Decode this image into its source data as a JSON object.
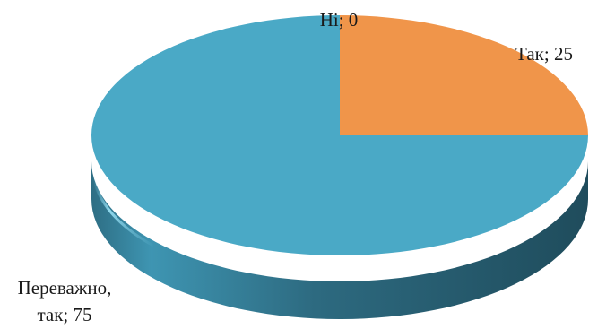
{
  "chart_data": {
    "type": "pie",
    "style": "3d",
    "title": "",
    "slices": [
      {
        "name": "Так",
        "value": 25,
        "label": "Так; 25",
        "color": "#F0954A",
        "color_dark": "#A9602B"
      },
      {
        "name": "Ні",
        "value": 0,
        "label": "Ні; 0",
        "color": "#8E8E8E",
        "color_dark": "#5E5E5E"
      },
      {
        "name": "Переважно, так",
        "value": 75,
        "label_lines": [
          "Переважно,",
          "так; 75"
        ],
        "color": "#4AA9C6",
        "color_dark": "#2C6F84"
      }
    ],
    "legend": "none",
    "data_labels": "category; value"
  }
}
